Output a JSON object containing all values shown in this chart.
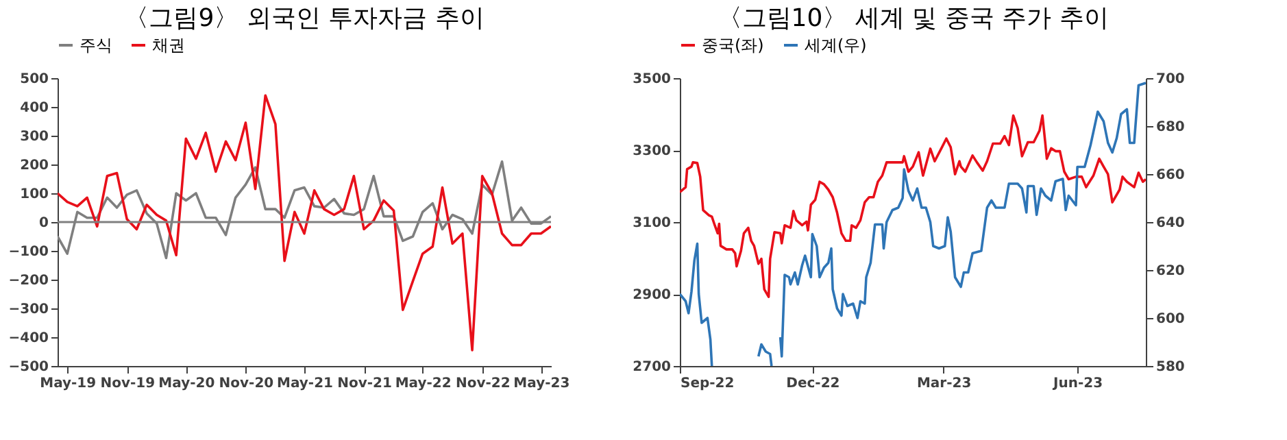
{
  "chart_data": [
    {
      "type": "line",
      "title": "〈그림9〉 외국인 투자자금 추이",
      "legend": "top",
      "x": [
        "2019-04",
        "2019-05",
        "2019-06",
        "2019-07",
        "2019-08",
        "2019-09",
        "2019-10",
        "2019-11",
        "2019-12",
        "2020-01",
        "2020-02",
        "2020-03",
        "2020-04",
        "2020-05",
        "2020-06",
        "2020-07",
        "2020-08",
        "2020-09",
        "2020-10",
        "2020-11",
        "2020-12",
        "2021-01",
        "2021-02",
        "2021-03",
        "2021-04",
        "2021-05",
        "2021-06",
        "2021-07",
        "2021-08",
        "2021-09",
        "2021-10",
        "2021-11",
        "2021-12",
        "2022-01",
        "2022-02",
        "2022-03",
        "2022-04",
        "2022-05",
        "2022-06",
        "2022-07",
        "2022-08",
        "2022-09",
        "2022-10",
        "2022-11",
        "2022-12",
        "2023-01",
        "2023-02",
        "2023-03",
        "2023-04",
        "2023-05",
        "2023-06"
      ],
      "series": [
        {
          "name": "주식",
          "color": "#7f7f7f",
          "values": [
            -50,
            -110,
            35,
            15,
            15,
            85,
            50,
            95,
            110,
            30,
            -5,
            -125,
            100,
            75,
            100,
            15,
            15,
            -45,
            85,
            130,
            190,
            45,
            45,
            15,
            110,
            120,
            55,
            50,
            80,
            30,
            25,
            45,
            160,
            20,
            20,
            -65,
            -50,
            35,
            65,
            -25,
            25,
            10,
            -40,
            130,
            95,
            210,
            5,
            50,
            -5,
            -5,
            20
          ]
        },
        {
          "name": "채권",
          "color": "#e8101a",
          "values": [
            100,
            70,
            55,
            85,
            -15,
            160,
            170,
            10,
            -25,
            60,
            25,
            5,
            -115,
            290,
            220,
            310,
            175,
            280,
            215,
            345,
            115,
            440,
            340,
            -135,
            35,
            -40,
            110,
            45,
            25,
            45,
            160,
            -25,
            5,
            75,
            40,
            -305,
            -205,
            -110,
            -85,
            120,
            -75,
            -40,
            -445,
            160,
            100,
            -40,
            -80,
            -80,
            -40,
            -40,
            -15
          ]
        }
      ],
      "xlim": [
        "2019-04",
        "2023-06"
      ],
      "xticks": [
        {
          "value": "2019-05",
          "label": "May-19"
        },
        {
          "value": "2019-11",
          "label": "Nov-19"
        },
        {
          "value": "2020-05",
          "label": "May-20"
        },
        {
          "value": "2020-11",
          "label": "Nov-20"
        },
        {
          "value": "2021-05",
          "label": "May-21"
        },
        {
          "value": "2021-11",
          "label": "Nov-21"
        },
        {
          "value": "2022-05",
          "label": "May-22"
        },
        {
          "value": "2022-11",
          "label": "Nov-22"
        },
        {
          "value": "2023-05",
          "label": "May-23"
        }
      ],
      "ylim": [
        -500,
        500
      ],
      "yticks": [
        -500,
        -400,
        -300,
        -200,
        -100,
        0,
        100,
        200,
        300,
        400,
        500
      ],
      "ref_lines": [
        {
          "axis": "y",
          "value": 0,
          "color": "#808080"
        }
      ],
      "grid": false
    },
    {
      "type": "line",
      "title": "〈그림10〉 세계 및 중국 주가 추이",
      "legend": "top",
      "series": [
        {
          "name": "중국(좌)",
          "color": "#e8101a",
          "x": [
            "2022-09-01",
            "2022-09-05",
            "2022-09-06",
            "2022-09-09",
            "2022-09-10",
            "2022-09-13",
            "2022-09-15",
            "2022-09-17",
            "2022-09-21",
            "2022-09-23",
            "2022-09-25",
            "2022-09-27",
            "2022-09-28",
            "2022-09-29",
            "2022-10-03",
            "2022-10-07",
            "2022-10-09",
            "2022-10-10",
            "2022-10-13",
            "2022-10-15",
            "2022-10-18",
            "2022-10-20",
            "2022-10-22",
            "2022-10-25",
            "2022-10-27",
            "2022-10-29",
            "2022-11-01",
            "2022-11-02",
            "2022-11-05",
            "2022-11-09",
            "2022-11-10",
            "2022-11-12",
            "2022-11-16",
            "2022-11-18",
            "2022-11-20",
            "2022-11-24",
            "2022-11-27",
            "2022-11-28",
            "2022-11-30",
            "2022-12-03",
            "2022-12-06",
            "2022-12-09",
            "2022-12-12",
            "2022-12-15",
            "2022-12-18",
            "2022-12-21",
            "2022-12-24",
            "2022-12-27",
            "2022-12-28",
            "2022-12-31",
            "2023-01-03",
            "2023-01-06",
            "2023-01-09",
            "2023-01-12",
            "2023-01-15",
            "2023-01-18",
            "2023-01-21",
            "2023-01-25",
            "2023-02-01",
            "2023-02-02",
            "2023-02-05",
            "2023-02-08",
            "2023-02-12",
            "2023-02-15",
            "2023-02-20",
            "2023-02-23",
            "2023-02-28",
            "2023-03-03",
            "2023-03-06",
            "2023-03-09",
            "2023-03-12",
            "2023-03-13",
            "2023-03-16",
            "2023-03-21",
            "2023-03-24",
            "2023-03-28",
            "2023-03-31",
            "2023-04-04",
            "2023-04-09",
            "2023-04-12",
            "2023-04-15",
            "2023-04-18",
            "2023-04-21",
            "2023-04-24",
            "2023-04-28",
            "2023-05-02",
            "2023-05-06",
            "2023-05-08",
            "2023-05-10",
            "2023-05-11",
            "2023-05-14",
            "2023-05-17",
            "2023-05-20",
            "2023-05-23",
            "2023-05-26",
            "2023-05-31",
            "2023-06-04",
            "2023-06-07",
            "2023-06-12",
            "2023-06-16",
            "2023-06-19",
            "2023-06-22",
            "2023-06-25",
            "2023-06-30",
            "2023-07-02",
            "2023-07-05",
            "2023-07-10",
            "2023-07-13",
            "2023-07-16",
            "2023-07-18"
          ],
          "values": [
            3183,
            3197,
            3247,
            3254,
            3266,
            3264,
            3226,
            3133,
            3119,
            3115,
            3091,
            3069,
            3095,
            3034,
            3024,
            3024,
            3013,
            2977,
            3020,
            3069,
            3084,
            3048,
            3034,
            2984,
            2998,
            2913,
            2892,
            2998,
            3072,
            3069,
            3041,
            3091,
            3084,
            3131,
            3105,
            3091,
            3101,
            3077,
            3148,
            3162,
            3212,
            3205,
            3190,
            3169,
            3126,
            3069,
            3048,
            3048,
            3091,
            3084,
            3105,
            3155,
            3169,
            3169,
            3212,
            3229,
            3266,
            3266,
            3266,
            3283,
            3240,
            3254,
            3294,
            3229,
            3304,
            3269,
            3308,
            3332,
            3308,
            3233,
            3269,
            3254,
            3240,
            3285,
            3266,
            3243,
            3269,
            3318,
            3318,
            3339,
            3314,
            3396,
            3361,
            3283,
            3322,
            3322,
            3354,
            3396,
            3318,
            3276,
            3305,
            3297,
            3297,
            3240,
            3219,
            3226,
            3226,
            3197,
            3229,
            3276,
            3254,
            3233,
            3155,
            3190,
            3226,
            3212,
            3197,
            3237,
            3212,
            3219
          ]
        },
        {
          "name": "세계(우)",
          "color": "#2e75b6",
          "axis": "y2",
          "x": [
            "2022-09-01",
            "2022-09-05",
            "2022-09-07",
            "2022-09-09",
            "2022-09-11",
            "2022-09-13",
            "2022-09-14",
            "2022-09-16",
            "2022-09-20",
            "2022-09-22",
            "2022-09-23",
            "2022-09-28",
            "2022-10-04",
            "2022-10-05",
            "2022-10-15",
            "2022-10-25",
            "2022-10-27",
            "2022-10-30",
            "2022-11-02",
            "2022-11-03",
            "2022-11-05",
            "2022-11-09",
            "2022-11-10",
            "2022-11-12",
            "2022-11-15",
            "2022-11-16",
            "2022-11-19",
            "2022-11-21",
            "2022-11-24",
            "2022-11-26",
            "2022-11-30",
            "2022-12-01",
            "2022-12-04",
            "2022-12-06",
            "2022-12-09",
            "2022-12-12",
            "2022-12-14",
            "2022-12-15",
            "2022-12-18",
            "2022-12-21",
            "2022-12-22",
            "2022-12-25",
            "2022-12-29",
            "2023-01-01",
            "2023-01-03",
            "2023-01-06",
            "2023-01-07",
            "2023-01-10",
            "2023-01-13",
            "2023-01-18",
            "2023-01-19",
            "2023-01-21",
            "2023-01-25",
            "2023-01-29",
            "2023-02-01",
            "2023-02-02",
            "2023-02-05",
            "2023-02-08",
            "2023-02-11",
            "2023-02-14",
            "2023-02-17",
            "2023-02-20",
            "2023-02-22",
            "2023-02-26",
            "2023-03-02",
            "2023-03-04",
            "2023-03-06",
            "2023-03-09",
            "2023-03-13",
            "2023-03-15",
            "2023-03-18",
            "2023-03-21",
            "2023-03-27",
            "2023-03-31",
            "2023-04-03",
            "2023-04-06",
            "2023-04-12",
            "2023-04-15",
            "2023-04-21",
            "2023-04-24",
            "2023-04-27",
            "2023-04-28",
            "2023-05-02",
            "2023-05-04",
            "2023-05-07",
            "2023-05-10",
            "2023-05-14",
            "2023-05-17",
            "2023-05-22",
            "2023-05-24",
            "2023-05-26",
            "2023-05-31",
            "2023-06-01",
            "2023-06-06",
            "2023-06-10",
            "2023-06-15",
            "2023-06-19",
            "2023-06-22",
            "2023-06-25",
            "2023-06-28",
            "2023-07-01",
            "2023-07-05",
            "2023-07-07",
            "2023-07-10",
            "2023-07-13",
            "2023-07-18"
          ],
          "values": [
            610,
            607,
            602,
            611,
            624,
            631,
            610,
            598,
            600,
            591,
            580,
            null,
            null,
            null,
            null,
            584,
            589,
            586,
            585,
            580,
            null,
            592,
            584,
            618,
            617,
            614,
            619,
            614,
            622,
            626,
            617,
            635,
            630,
            617,
            621,
            623,
            629,
            612,
            604,
            601,
            610,
            605,
            606,
            600,
            607,
            606,
            617,
            623,
            639,
            639,
            629,
            640,
            645,
            646,
            650,
            662,
            653,
            649,
            654,
            646,
            646,
            640,
            630,
            629,
            630,
            642,
            636,
            617,
            613,
            619,
            619,
            627,
            628,
            646,
            649,
            646,
            646,
            656,
            656,
            654,
            644,
            655,
            655,
            643,
            654,
            651,
            649,
            657,
            658,
            645,
            651,
            647,
            663,
            663,
            672,
            686,
            682,
            673,
            669,
            675,
            685,
            687,
            673,
            673,
            697,
            698
          ]
        }
      ],
      "xlim": [
        "2022-09-01",
        "2023-07-18"
      ],
      "xticks": [
        {
          "value": "2022-09-01",
          "label": "Sep-22"
        },
        {
          "value": "2022-12-01",
          "label": "Dec-22"
        },
        {
          "value": "2023-03-01",
          "label": "Mar-23"
        },
        {
          "value": "2023-06-01",
          "label": "Jun-23"
        }
      ],
      "ylim": [
        2700,
        3500
      ],
      "yticks": [
        2700,
        2900,
        3100,
        3300,
        3500
      ],
      "y2lim": [
        580,
        700
      ],
      "y2ticks": [
        580,
        600,
        620,
        640,
        660,
        680,
        700
      ],
      "grid": false
    }
  ]
}
